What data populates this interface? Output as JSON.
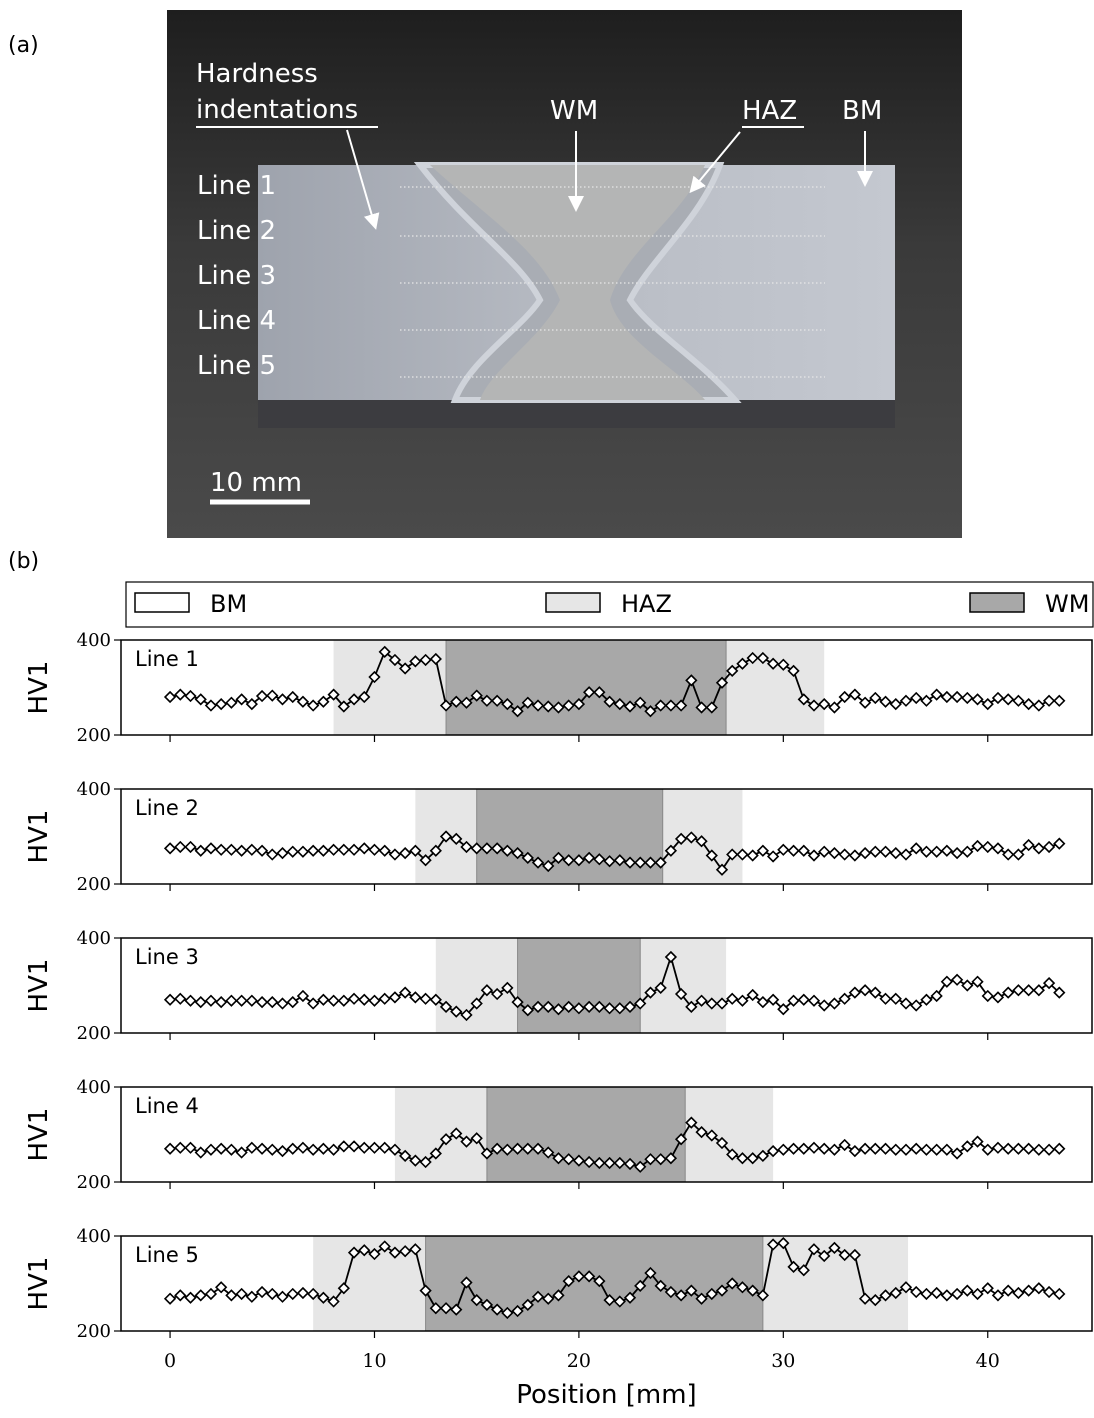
{
  "panel_a": {
    "label": "(a)",
    "indentations": "Hardness indentations",
    "wm": "WM",
    "haz": "HAZ",
    "bm": "BM",
    "lines": [
      "Line 1",
      "Line 2",
      "Line 3",
      "Line 4",
      "Line 5"
    ],
    "scale": "10 mm"
  },
  "panel_b": {
    "label": "(b)"
  },
  "legend": [
    {
      "name": "BM",
      "color": "#ffffff"
    },
    {
      "name": "HAZ",
      "color": "#e6e6e6"
    },
    {
      "name": "WM",
      "color": "#a8a8a8"
    }
  ],
  "chart_data": [
    {
      "type": "line",
      "title": "Line 1",
      "ylabel": "HV1",
      "color": "#000000",
      "marker": "diamond",
      "xlim": [
        -2.4,
        45.1
      ],
      "ylim": [
        200,
        400
      ],
      "yticks": [
        200,
        400
      ],
      "xticks": [
        0,
        10,
        20,
        30,
        40
      ],
      "haz": [
        8,
        32
      ],
      "wm": [
        13.5,
        27.2
      ],
      "x": [
        0,
        0.5,
        1,
        1.5,
        2,
        2.5,
        3,
        3.5,
        4,
        4.5,
        5,
        5.5,
        6,
        6.5,
        7,
        7.5,
        8,
        8.5,
        9,
        9.5,
        10,
        10.5,
        11,
        11.5,
        12,
        12.5,
        13,
        13.5,
        14,
        14.5,
        15,
        15.5,
        16,
        16.5,
        17,
        17.5,
        18,
        18.5,
        19,
        19.5,
        20,
        20.5,
        21,
        21.5,
        22,
        22.5,
        23,
        23.5,
        24,
        24.5,
        25,
        25.5,
        26,
        26.5,
        27,
        27.5,
        28,
        28.5,
        29,
        29.5,
        30,
        30.5,
        31,
        31.5,
        32,
        32.5,
        33,
        33.5,
        34,
        34.5,
        35,
        35.5,
        36,
        36.5,
        37,
        37.5,
        38,
        38.5,
        39,
        39.5,
        40,
        40.5,
        41,
        41.5,
        42,
        42.5,
        43,
        43.5
      ],
      "values": [
        280,
        285,
        282,
        275,
        262,
        265,
        268,
        275,
        265,
        282,
        283,
        275,
        280,
        270,
        262,
        270,
        285,
        260,
        275,
        280,
        322,
        375,
        358,
        340,
        355,
        358,
        360,
        262,
        270,
        268,
        283,
        272,
        272,
        265,
        250,
        268,
        262,
        260,
        258,
        262,
        265,
        290,
        290,
        270,
        265,
        260,
        268,
        250,
        262,
        262,
        262,
        315,
        258,
        258,
        310,
        335,
        350,
        362,
        362,
        350,
        348,
        335,
        275,
        262,
        265,
        258,
        280,
        285,
        268,
        278,
        270,
        265,
        272,
        278,
        272,
        285,
        280,
        280,
        278,
        275,
        265,
        278,
        275,
        272,
        265,
        262,
        272,
        272
      ]
    },
    {
      "type": "line",
      "title": "Line 2",
      "ylabel": "HV1",
      "color": "#000000",
      "marker": "diamond",
      "xlim": [
        -2.4,
        45.1
      ],
      "ylim": [
        200,
        400
      ],
      "yticks": [
        200,
        400
      ],
      "xticks": [
        0,
        10,
        20,
        30,
        40
      ],
      "haz": [
        12,
        28
      ],
      "wm": [
        15,
        24.1
      ],
      "x": [
        0,
        0.5,
        1,
        1.5,
        2,
        2.5,
        3,
        3.5,
        4,
        4.5,
        5,
        5.5,
        6,
        6.5,
        7,
        7.5,
        8,
        8.5,
        9,
        9.5,
        10,
        10.5,
        11,
        11.5,
        12,
        12.5,
        13,
        13.5,
        14,
        14.5,
        15,
        15.5,
        16,
        16.5,
        17,
        17.5,
        18,
        18.5,
        19,
        19.5,
        20,
        20.5,
        21,
        21.5,
        22,
        22.5,
        23,
        23.5,
        24,
        24.5,
        25,
        25.5,
        26,
        26.5,
        27,
        27.5,
        28,
        28.5,
        29,
        29.5,
        30,
        30.5,
        31,
        31.5,
        32,
        32.5,
        33,
        33.5,
        34,
        34.5,
        35,
        35.5,
        36,
        36.5,
        37,
        37.5,
        38,
        38.5,
        39,
        39.5,
        40,
        40.5,
        41,
        41.5,
        42,
        42.5,
        43,
        43.5
      ],
      "values": [
        275,
        278,
        278,
        270,
        275,
        272,
        272,
        270,
        272,
        270,
        262,
        265,
        268,
        268,
        270,
        270,
        272,
        272,
        272,
        275,
        272,
        270,
        262,
        265,
        270,
        250,
        270,
        300,
        295,
        278,
        275,
        275,
        275,
        270,
        265,
        255,
        245,
        238,
        255,
        250,
        250,
        255,
        252,
        248,
        250,
        245,
        245,
        245,
        245,
        270,
        295,
        298,
        290,
        260,
        230,
        262,
        262,
        260,
        270,
        258,
        272,
        270,
        270,
        260,
        268,
        265,
        262,
        260,
        265,
        268,
        268,
        265,
        262,
        275,
        268,
        268,
        270,
        265,
        268,
        280,
        278,
        275,
        262,
        262,
        282,
        275,
        278,
        285
      ]
    },
    {
      "type": "line",
      "title": "Line 3",
      "ylabel": "HV1",
      "color": "#000000",
      "marker": "diamond",
      "xlim": [
        -2.4,
        45.1
      ],
      "ylim": [
        200,
        400
      ],
      "yticks": [
        200,
        400
      ],
      "xticks": [
        0,
        10,
        20,
        30,
        40
      ],
      "haz": [
        13,
        27.2
      ],
      "wm": [
        17,
        23
      ],
      "x": [
        0,
        0.5,
        1,
        1.5,
        2,
        2.5,
        3,
        3.5,
        4,
        4.5,
        5,
        5.5,
        6,
        6.5,
        7,
        7.5,
        8,
        8.5,
        9,
        9.5,
        10,
        10.5,
        11,
        11.5,
        12,
        12.5,
        13,
        13.5,
        14,
        14.5,
        15,
        15.5,
        16,
        16.5,
        17,
        17.5,
        18,
        18.5,
        19,
        19.5,
        20,
        20.5,
        21,
        21.5,
        22,
        22.5,
        23,
        23.5,
        24,
        24.5,
        25,
        25.5,
        26,
        26.5,
        27,
        27.5,
        28,
        28.5,
        29,
        29.5,
        30,
        30.5,
        31,
        31.5,
        32,
        32.5,
        33,
        33.5,
        34,
        34.5,
        35,
        35.5,
        36,
        36.5,
        37,
        37.5,
        38,
        38.5,
        39,
        39.5,
        40,
        40.5,
        41,
        41.5,
        42,
        42.5,
        43,
        43.5
      ],
      "values": [
        270,
        272,
        268,
        265,
        268,
        265,
        268,
        268,
        268,
        265,
        265,
        262,
        265,
        278,
        262,
        270,
        268,
        268,
        272,
        270,
        268,
        272,
        275,
        285,
        275,
        272,
        270,
        255,
        245,
        238,
        262,
        290,
        282,
        295,
        265,
        248,
        255,
        255,
        250,
        255,
        252,
        255,
        255,
        252,
        252,
        255,
        262,
        285,
        295,
        360,
        282,
        255,
        268,
        262,
        262,
        272,
        268,
        280,
        265,
        270,
        250,
        268,
        270,
        268,
        258,
        262,
        272,
        285,
        290,
        285,
        272,
        272,
        262,
        258,
        270,
        278,
        308,
        312,
        300,
        308,
        278,
        275,
        285,
        290,
        290,
        290,
        305,
        285
      ]
    },
    {
      "type": "line",
      "title": "Line 4",
      "ylabel": "HV1",
      "color": "#000000",
      "marker": "diamond",
      "xlim": [
        -2.4,
        45.1
      ],
      "ylim": [
        200,
        400
      ],
      "yticks": [
        200,
        400
      ],
      "xticks": [
        0,
        10,
        20,
        30,
        40
      ],
      "haz": [
        11,
        29.5
      ],
      "wm": [
        15.5,
        25.2
      ],
      "x": [
        0,
        0.5,
        1,
        1.5,
        2,
        2.5,
        3,
        3.5,
        4,
        4.5,
        5,
        5.5,
        6,
        6.5,
        7,
        7.5,
        8,
        8.5,
        9,
        9.5,
        10,
        10.5,
        11,
        11.5,
        12,
        12.5,
        13,
        13.5,
        14,
        14.5,
        15,
        15.5,
        16,
        16.5,
        17,
        17.5,
        18,
        18.5,
        19,
        19.5,
        20,
        20.5,
        21,
        21.5,
        22,
        22.5,
        23,
        23.5,
        24,
        24.5,
        25,
        25.5,
        26,
        26.5,
        27,
        27.5,
        28,
        28.5,
        29,
        29.5,
        30,
        30.5,
        31,
        31.5,
        32,
        32.5,
        33,
        33.5,
        34,
        34.5,
        35,
        35.5,
        36,
        36.5,
        37,
        37.5,
        38,
        38.5,
        39,
        39.5,
        40,
        40.5,
        41,
        41.5,
        42,
        42.5,
        43,
        43.5
      ],
      "values": [
        270,
        272,
        272,
        262,
        268,
        270,
        268,
        262,
        272,
        270,
        268,
        265,
        270,
        272,
        268,
        270,
        268,
        275,
        275,
        272,
        272,
        272,
        268,
        255,
        245,
        242,
        260,
        290,
        302,
        285,
        292,
        260,
        270,
        268,
        270,
        270,
        270,
        262,
        250,
        248,
        245,
        242,
        240,
        240,
        240,
        238,
        232,
        248,
        248,
        250,
        290,
        325,
        305,
        298,
        282,
        258,
        250,
        250,
        255,
        265,
        268,
        270,
        270,
        272,
        270,
        268,
        278,
        265,
        270,
        270,
        270,
        268,
        268,
        270,
        268,
        268,
        268,
        260,
        275,
        285,
        268,
        272,
        270,
        270,
        270,
        268,
        268,
        270
      ]
    },
    {
      "type": "line",
      "title": "Line 5",
      "ylabel": "HV1",
      "xlabel": "Position [mm]",
      "xtick_labels": true,
      "color": "#000000",
      "marker": "diamond",
      "xlim": [
        -2.4,
        45.1
      ],
      "ylim": [
        200,
        400
      ],
      "yticks": [
        200,
        400
      ],
      "xticks": [
        0,
        10,
        20,
        30,
        40
      ],
      "haz": [
        7,
        36.1
      ],
      "wm": [
        12.5,
        29
      ],
      "x": [
        0,
        0.5,
        1,
        1.5,
        2,
        2.5,
        3,
        3.5,
        4,
        4.5,
        5,
        5.5,
        6,
        6.5,
        7,
        7.5,
        8,
        8.5,
        9,
        9.5,
        10,
        10.5,
        11,
        11.5,
        12,
        12.5,
        13,
        13.5,
        14,
        14.5,
        15,
        15.5,
        16,
        16.5,
        17,
        17.5,
        18,
        18.5,
        19,
        19.5,
        20,
        20.5,
        21,
        21.5,
        22,
        22.5,
        23,
        23.5,
        24,
        24.5,
        25,
        25.5,
        26,
        26.5,
        27,
        27.5,
        28,
        28.5,
        29,
        29.5,
        30,
        30.5,
        31,
        31.5,
        32,
        32.5,
        33,
        33.5,
        34,
        34.5,
        35,
        35.5,
        36,
        36.5,
        37,
        37.5,
        38,
        38.5,
        39,
        39.5,
        40,
        40.5,
        41,
        41.5,
        42,
        42.5,
        43,
        43.5
      ],
      "values": [
        268,
        275,
        270,
        275,
        278,
        292,
        275,
        278,
        272,
        282,
        278,
        272,
        278,
        280,
        278,
        270,
        262,
        290,
        365,
        370,
        362,
        378,
        365,
        368,
        372,
        285,
        248,
        248,
        245,
        302,
        265,
        255,
        245,
        238,
        242,
        255,
        272,
        268,
        275,
        305,
        315,
        315,
        305,
        265,
        262,
        270,
        295,
        322,
        295,
        282,
        275,
        285,
        268,
        278,
        285,
        300,
        292,
        285,
        275,
        382,
        385,
        335,
        328,
        372,
        358,
        375,
        360,
        360,
        268,
        265,
        275,
        280,
        292,
        282,
        278,
        280,
        275,
        278,
        285,
        278,
        290,
        275,
        285,
        280,
        285,
        290,
        282,
        278
      ]
    }
  ]
}
